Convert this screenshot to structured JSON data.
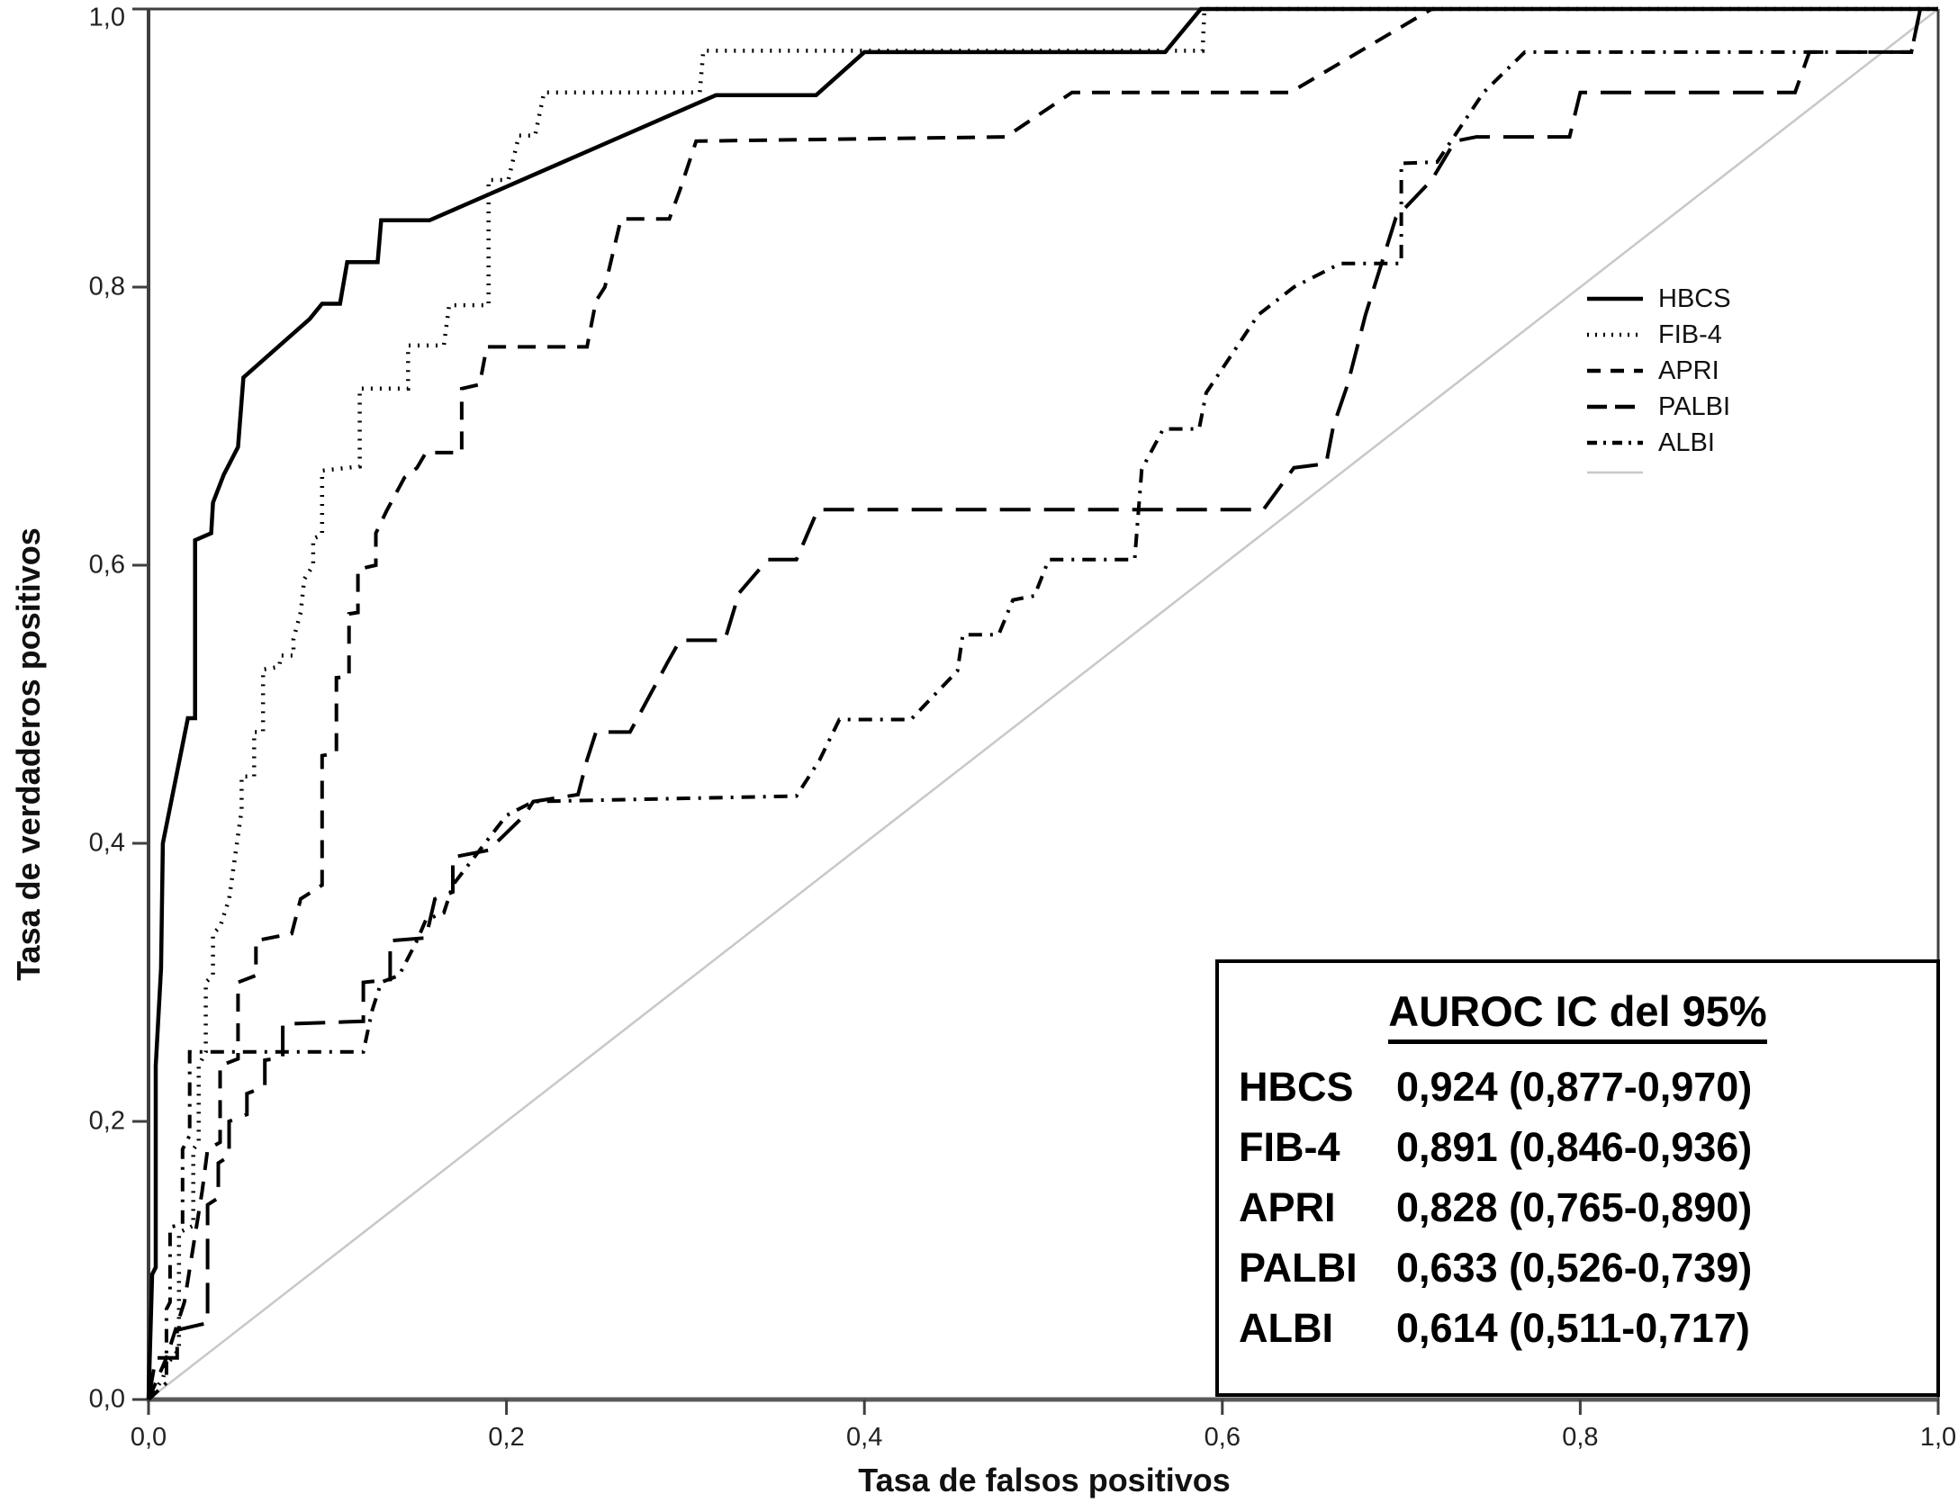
{
  "axes": {
    "x_label": "Tasa de falsos positivos",
    "y_label": "Tasa de verdaderos positivos",
    "x_ticks": [
      "0,0",
      "0,2",
      "0,4",
      "0,6",
      "0,8",
      "1,0"
    ],
    "y_ticks": [
      "0,0",
      "0,2",
      "0,4",
      "0,6",
      "0,8",
      "1,0"
    ],
    "x_range": [
      0,
      1
    ],
    "y_range": [
      0,
      1
    ]
  },
  "legend": {
    "items": [
      {
        "label": "HBCS",
        "style": "solid"
      },
      {
        "label": "FIB-4",
        "style": "dotted"
      },
      {
        "label": "APRI",
        "style": "dashed"
      },
      {
        "label": "PALBI",
        "style": "longdash"
      },
      {
        "label": "ALBI",
        "style": "dashdot"
      },
      {
        "label": "",
        "style": "reference"
      }
    ]
  },
  "auroc_box": {
    "title": "AUROC IC del 95%",
    "rows": [
      {
        "label": "HBCS",
        "value": "0,924 (0,877-0,970)"
      },
      {
        "label": "FIB-4",
        "value": "0,891 (0,846-0,936)"
      },
      {
        "label": "APRI",
        "value": "0,828 (0,765-0,890)"
      },
      {
        "label": "PALBI",
        "value": "0,633 (0,526-0,739)"
      },
      {
        "label": "ALBI",
        "value": "0,614 (0,511-0,717)"
      }
    ]
  },
  "colors": {
    "curve": "#000000",
    "reference_line": "#c8c8c8",
    "frame": "#3f3f3f",
    "bottom_axis": "#595959",
    "text": "#1a1a1a"
  },
  "chart_data": {
    "type": "line",
    "title": "",
    "xlabel": "Tasa de falsos positivos",
    "ylabel": "Tasa de verdaderos positivos",
    "xlim": [
      0,
      1
    ],
    "ylim": [
      0,
      1
    ],
    "grid": false,
    "legend_position": "inside-upper-right",
    "note": "ROC curves (step functions), diagonal reference line, AUROC values with 95% CI shown in box",
    "series": [
      {
        "name": "HBCS",
        "style": "solid",
        "color": "#000000",
        "auroc": "0,924",
        "ci": "0,877-0,970",
        "points": [
          [
            0,
            0
          ],
          [
            0.002,
            0.09
          ],
          [
            0.004,
            0.095
          ],
          [
            0.004,
            0.24
          ],
          [
            0.007,
            0.31
          ],
          [
            0.008,
            0.4
          ],
          [
            0.022,
            0.49
          ],
          [
            0.026,
            0.49
          ],
          [
            0.026,
            0.618
          ],
          [
            0.035,
            0.623
          ],
          [
            0.036,
            0.645
          ],
          [
            0.042,
            0.665
          ],
          [
            0.05,
            0.685
          ],
          [
            0.053,
            0.735
          ],
          [
            0.09,
            0.777
          ],
          [
            0.097,
            0.788
          ],
          [
            0.107,
            0.788
          ],
          [
            0.111,
            0.818
          ],
          [
            0.128,
            0.818
          ],
          [
            0.13,
            0.848
          ],
          [
            0.157,
            0.848
          ],
          [
            0.317,
            0.938
          ],
          [
            0.373,
            0.938
          ],
          [
            0.4,
            0.969
          ],
          [
            0.568,
            0.969
          ],
          [
            0.588,
            1
          ],
          [
            1,
            1
          ]
        ]
      },
      {
        "name": "FIB-4",
        "style": "dotted",
        "color": "#000000",
        "auroc": "0,891",
        "ci": "0,846-0,936",
        "points": [
          [
            0,
            0
          ],
          [
            0.008,
            0.015
          ],
          [
            0.01,
            0.025
          ],
          [
            0.017,
            0.036
          ],
          [
            0.017,
            0.12
          ],
          [
            0.025,
            0.125
          ],
          [
            0.025,
            0.18
          ],
          [
            0.028,
            0.185
          ],
          [
            0.028,
            0.24
          ],
          [
            0.032,
            0.25
          ],
          [
            0.032,
            0.3
          ],
          [
            0.036,
            0.305
          ],
          [
            0.036,
            0.335
          ],
          [
            0.04,
            0.34
          ],
          [
            0.045,
            0.36
          ],
          [
            0.052,
            0.424
          ],
          [
            0.052,
            0.448
          ],
          [
            0.059,
            0.448
          ],
          [
            0.059,
            0.48
          ],
          [
            0.064,
            0.48
          ],
          [
            0.064,
            0.525
          ],
          [
            0.073,
            0.527
          ],
          [
            0.074,
            0.535
          ],
          [
            0.081,
            0.535
          ],
          [
            0.081,
            0.547
          ],
          [
            0.085,
            0.566
          ],
          [
            0.087,
            0.59
          ],
          [
            0.092,
            0.6
          ],
          [
            0.092,
            0.619
          ],
          [
            0.097,
            0.622
          ],
          [
            0.097,
            0.668
          ],
          [
            0.118,
            0.671
          ],
          [
            0.118,
            0.727
          ],
          [
            0.145,
            0.727
          ],
          [
            0.145,
            0.758
          ],
          [
            0.165,
            0.758
          ],
          [
            0.168,
            0.787
          ],
          [
            0.19,
            0.787
          ],
          [
            0.19,
            0.877
          ],
          [
            0.201,
            0.877
          ],
          [
            0.207,
            0.909
          ],
          [
            0.216,
            0.909
          ],
          [
            0.221,
            0.94
          ],
          [
            0.308,
            0.94
          ],
          [
            0.31,
            0.97
          ],
          [
            0.589,
            0.97
          ],
          [
            0.59,
            1
          ],
          [
            1,
            1
          ]
        ]
      },
      {
        "name": "APRI",
        "style": "dashed",
        "color": "#000000",
        "auroc": "0,828",
        "ci": "0,765-0,890",
        "points": [
          [
            0,
            0
          ],
          [
            0.01,
            0.03
          ],
          [
            0.02,
            0.07
          ],
          [
            0.025,
            0.11
          ],
          [
            0.03,
            0.15
          ],
          [
            0.033,
            0.18
          ],
          [
            0.04,
            0.185
          ],
          [
            0.04,
            0.24
          ],
          [
            0.05,
            0.245
          ],
          [
            0.05,
            0.3
          ],
          [
            0.06,
            0.305
          ],
          [
            0.06,
            0.33
          ],
          [
            0.08,
            0.335
          ],
          [
            0.085,
            0.36
          ],
          [
            0.097,
            0.37
          ],
          [
            0.097,
            0.463
          ],
          [
            0.105,
            0.465
          ],
          [
            0.105,
            0.519
          ],
          [
            0.112,
            0.52
          ],
          [
            0.112,
            0.565
          ],
          [
            0.117,
            0.566
          ],
          [
            0.117,
            0.597
          ],
          [
            0.127,
            0.6
          ],
          [
            0.127,
            0.623
          ],
          [
            0.133,
            0.639
          ],
          [
            0.143,
            0.663
          ],
          [
            0.15,
            0.67
          ],
          [
            0.155,
            0.681
          ],
          [
            0.175,
            0.681
          ],
          [
            0.175,
            0.727
          ],
          [
            0.185,
            0.73
          ],
          [
            0.189,
            0.757
          ],
          [
            0.245,
            0.757
          ],
          [
            0.25,
            0.79
          ],
          [
            0.255,
            0.8
          ],
          [
            0.264,
            0.849
          ],
          [
            0.291,
            0.849
          ],
          [
            0.297,
            0.87
          ],
          [
            0.306,
            0.905
          ],
          [
            0.479,
            0.908
          ],
          [
            0.516,
            0.94
          ],
          [
            0.638,
            0.94
          ],
          [
            0.717,
            1
          ],
          [
            1,
            1
          ]
        ]
      },
      {
        "name": "PALBI",
        "style": "longdash",
        "color": "#000000",
        "auroc": "0,633",
        "ci": "0,526-0,739",
        "points": [
          [
            0,
            0
          ],
          [
            0.004,
            0.03
          ],
          [
            0.016,
            0.03
          ],
          [
            0.016,
            0.05
          ],
          [
            0.033,
            0.055
          ],
          [
            0.033,
            0.14
          ],
          [
            0.039,
            0.145
          ],
          [
            0.039,
            0.17
          ],
          [
            0.045,
            0.175
          ],
          [
            0.045,
            0.2
          ],
          [
            0.055,
            0.205
          ],
          [
            0.055,
            0.22
          ],
          [
            0.065,
            0.225
          ],
          [
            0.065,
            0.244
          ],
          [
            0.075,
            0.246
          ],
          [
            0.075,
            0.27
          ],
          [
            0.12,
            0.272
          ],
          [
            0.12,
            0.3
          ],
          [
            0.135,
            0.302
          ],
          [
            0.135,
            0.33
          ],
          [
            0.155,
            0.332
          ],
          [
            0.16,
            0.36
          ],
          [
            0.17,
            0.365
          ],
          [
            0.17,
            0.39
          ],
          [
            0.19,
            0.395
          ],
          [
            0.21,
            0.42
          ],
          [
            0.215,
            0.43
          ],
          [
            0.24,
            0.435
          ],
          [
            0.245,
            0.46
          ],
          [
            0.25,
            0.48
          ],
          [
            0.269,
            0.48
          ],
          [
            0.29,
            0.53
          ],
          [
            0.297,
            0.546
          ],
          [
            0.322,
            0.546
          ],
          [
            0.33,
            0.58
          ],
          [
            0.346,
            0.604
          ],
          [
            0.362,
            0.604
          ],
          [
            0.374,
            0.64
          ],
          [
            0.623,
            0.64
          ],
          [
            0.64,
            0.67
          ],
          [
            0.658,
            0.673
          ],
          [
            0.662,
            0.7
          ],
          [
            0.67,
            0.73
          ],
          [
            0.68,
            0.78
          ],
          [
            0.697,
            0.85
          ],
          [
            0.717,
            0.877
          ],
          [
            0.73,
            0.905
          ],
          [
            0.742,
            0.908
          ],
          [
            0.794,
            0.908
          ],
          [
            0.8,
            0.94
          ],
          [
            0.92,
            0.94
          ],
          [
            0.928,
            0.969
          ],
          [
            0.985,
            0.969
          ],
          [
            0.99,
            1
          ],
          [
            1,
            1
          ]
        ]
      },
      {
        "name": "ALBI",
        "style": "dashdot",
        "color": "#000000",
        "auroc": "0,614",
        "ci": "0,511-0,717",
        "points": [
          [
            0,
            0
          ],
          [
            0.01,
            0.012
          ],
          [
            0.01,
            0.065
          ],
          [
            0.012,
            0.07
          ],
          [
            0.012,
            0.124
          ],
          [
            0.019,
            0.126
          ],
          [
            0.019,
            0.18
          ],
          [
            0.023,
            0.19
          ],
          [
            0.023,
            0.25
          ],
          [
            0.12,
            0.25
          ],
          [
            0.125,
            0.28
          ],
          [
            0.13,
            0.3
          ],
          [
            0.14,
            0.305
          ],
          [
            0.15,
            0.33
          ],
          [
            0.155,
            0.345
          ],
          [
            0.165,
            0.35
          ],
          [
            0.17,
            0.37
          ],
          [
            0.185,
            0.395
          ],
          [
            0.2,
            0.42
          ],
          [
            0.215,
            0.43
          ],
          [
            0.362,
            0.434
          ],
          [
            0.375,
            0.46
          ],
          [
            0.386,
            0.489
          ],
          [
            0.426,
            0.489
          ],
          [
            0.452,
            0.524
          ],
          [
            0.455,
            0.55
          ],
          [
            0.475,
            0.55
          ],
          [
            0.483,
            0.575
          ],
          [
            0.495,
            0.578
          ],
          [
            0.503,
            0.604
          ],
          [
            0.551,
            0.604
          ],
          [
            0.555,
            0.669
          ],
          [
            0.567,
            0.698
          ],
          [
            0.587,
            0.698
          ],
          [
            0.591,
            0.724
          ],
          [
            0.62,
            0.78
          ],
          [
            0.64,
            0.8
          ],
          [
            0.666,
            0.817
          ],
          [
            0.7,
            0.817
          ],
          [
            0.7,
            0.889
          ],
          [
            0.72,
            0.89
          ],
          [
            0.746,
            0.94
          ],
          [
            0.769,
            0.969
          ],
          [
            0.985,
            0.969
          ],
          [
            0.99,
            1
          ],
          [
            1,
            1
          ]
        ]
      },
      {
        "name": "reference",
        "style": "reference",
        "color": "#c8c8c8",
        "points": [
          [
            0,
            0
          ],
          [
            1,
            1
          ]
        ]
      }
    ]
  }
}
